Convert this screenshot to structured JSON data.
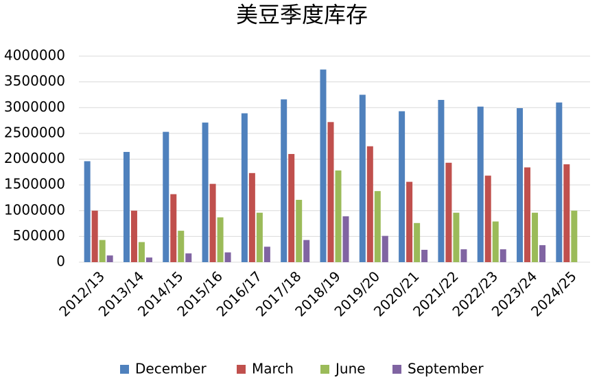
{
  "chart_data": {
    "type": "bar",
    "title": "美豆季度库存",
    "categories": [
      "2012/13",
      "2013/14",
      "2014/15",
      "2015/16",
      "2016/17",
      "2017/18",
      "2018/19",
      "2019/20",
      "2020/21",
      "2021/22",
      "2022/23",
      "2023/24",
      "2024/25"
    ],
    "series": [
      {
        "name": "December",
        "color": "#4f81bd",
        "values": [
          1960000,
          2140000,
          2530000,
          2710000,
          2890000,
          3160000,
          3740000,
          3250000,
          2930000,
          3150000,
          3020000,
          2990000,
          3100000
        ]
      },
      {
        "name": "March",
        "color": "#c0504d",
        "values": [
          1000000,
          1000000,
          1320000,
          1520000,
          1730000,
          2100000,
          2720000,
          2250000,
          1560000,
          1930000,
          1680000,
          1840000,
          1900000
        ]
      },
      {
        "name": "June",
        "color": "#9bbb59",
        "values": [
          430000,
          390000,
          610000,
          870000,
          960000,
          1210000,
          1780000,
          1380000,
          760000,
          960000,
          790000,
          960000,
          1000000
        ]
      },
      {
        "name": "September",
        "color": "#8064a2",
        "values": [
          130000,
          90000,
          170000,
          190000,
          300000,
          430000,
          890000,
          510000,
          240000,
          250000,
          250000,
          330000,
          null
        ]
      }
    ],
    "ylim": [
      0,
      4000000
    ],
    "yticks": [
      0,
      500000,
      1000000,
      1500000,
      2000000,
      2500000,
      3000000,
      3500000,
      4000000
    ],
    "grid": true,
    "legend": "bottom"
  }
}
